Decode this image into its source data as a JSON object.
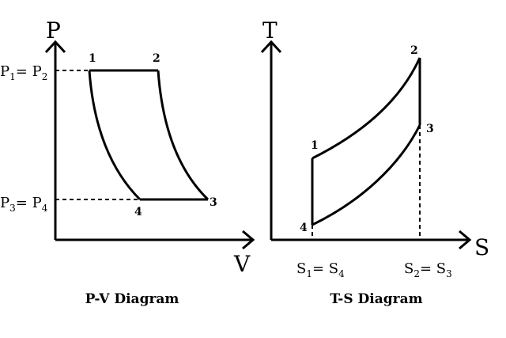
{
  "pv": {
    "axis_y": "P",
    "axis_x": "V",
    "points": {
      "p1": "1",
      "p2": "2",
      "p3": "3",
      "p4": "4"
    },
    "label_top": {
      "base1": "P",
      "sub1": "1",
      "eq": "= P",
      "sub2": "2"
    },
    "label_bottom": {
      "base1": "P",
      "sub1": "3",
      "eq": "= P",
      "sub2": "4"
    },
    "caption": "P-V Diagram"
  },
  "ts": {
    "axis_y": "T",
    "axis_x": "S",
    "points": {
      "p1": "1",
      "p2": "2",
      "p3": "3",
      "p4": "4"
    },
    "label_left": {
      "base1": "S",
      "sub1": "1",
      "eq": "= S",
      "sub2": "4"
    },
    "label_right": {
      "base1": "S",
      "sub1": "2",
      "eq": "= S",
      "sub2": "3"
    },
    "caption": "T-S Diagram"
  }
}
